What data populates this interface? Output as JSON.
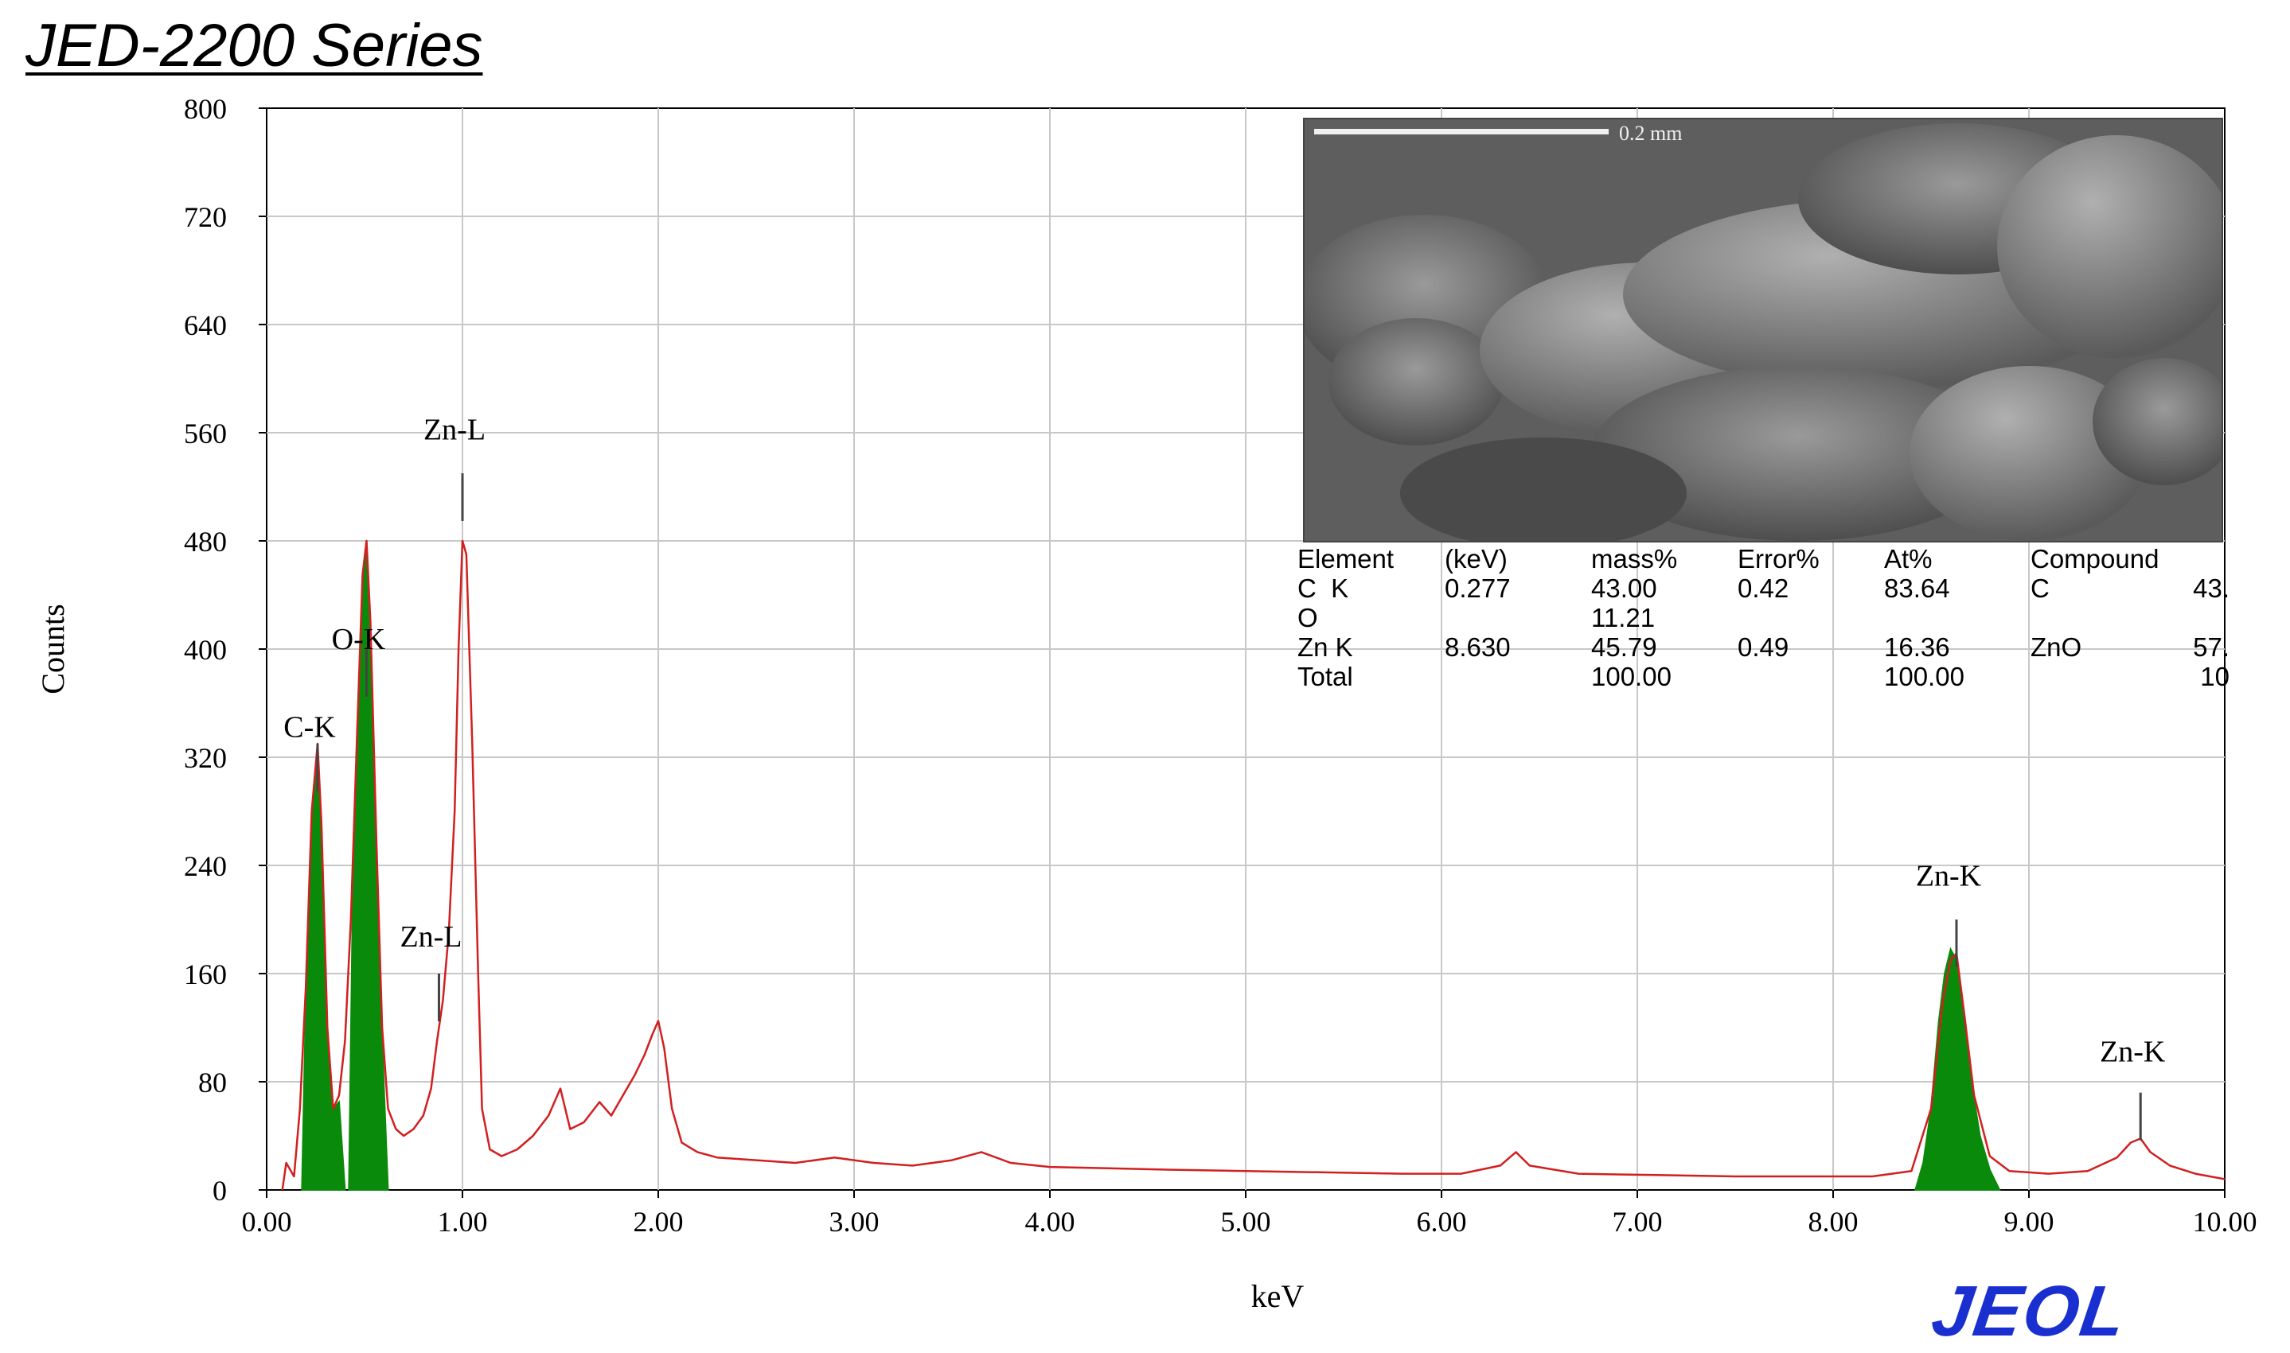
{
  "header": {
    "title": "JED-2200 Series"
  },
  "brand": {
    "logo_text": "JEOL",
    "logo_color": "#1a2fd0"
  },
  "colors": {
    "spectrum_line": "#d21f1f",
    "peak_fill": "#0a8a0a",
    "grid": "#c8c8c8",
    "axis": "#000000"
  },
  "chart_data": {
    "type": "line",
    "xlabel": "keV",
    "ylabel": "Counts",
    "xlim": [
      0,
      10
    ],
    "ylim": [
      0,
      800
    ],
    "x_ticks": [
      "0.00",
      "1.00",
      "2.00",
      "3.00",
      "4.00",
      "5.00",
      "6.00",
      "7.00",
      "8.00",
      "9.00",
      "10.00"
    ],
    "y_ticks": [
      "0",
      "80",
      "160",
      "240",
      "320",
      "400",
      "480",
      "560",
      "640",
      "720",
      "800"
    ],
    "grid": true,
    "series": [
      {
        "style": "line",
        "points": [
          [
            0.08,
            0
          ],
          [
            0.1,
            20
          ],
          [
            0.14,
            10
          ],
          [
            0.17,
            60
          ],
          [
            0.2,
            150
          ],
          [
            0.23,
            280
          ],
          [
            0.26,
            330
          ],
          [
            0.28,
            270
          ],
          [
            0.31,
            120
          ],
          [
            0.34,
            60
          ],
          [
            0.37,
            70
          ],
          [
            0.4,
            110
          ],
          [
            0.43,
            200
          ],
          [
            0.46,
            330
          ],
          [
            0.49,
            455
          ],
          [
            0.51,
            480
          ],
          [
            0.53,
            420
          ],
          [
            0.56,
            260
          ],
          [
            0.59,
            120
          ],
          [
            0.62,
            60
          ],
          [
            0.66,
            45
          ],
          [
            0.7,
            40
          ],
          [
            0.75,
            45
          ],
          [
            0.8,
            55
          ],
          [
            0.84,
            75
          ],
          [
            0.87,
            110
          ],
          [
            0.9,
            140
          ],
          [
            0.93,
            190
          ],
          [
            0.96,
            280
          ],
          [
            0.98,
            400
          ],
          [
            1.0,
            480
          ],
          [
            1.02,
            470
          ],
          [
            1.05,
            330
          ],
          [
            1.08,
            160
          ],
          [
            1.1,
            60
          ],
          [
            1.14,
            30
          ],
          [
            1.2,
            25
          ],
          [
            1.28,
            30
          ],
          [
            1.36,
            40
          ],
          [
            1.44,
            55
          ],
          [
            1.5,
            75
          ],
          [
            1.55,
            45
          ],
          [
            1.62,
            50
          ],
          [
            1.7,
            65
          ],
          [
            1.76,
            55
          ],
          [
            1.82,
            70
          ],
          [
            1.88,
            85
          ],
          [
            1.93,
            100
          ],
          [
            1.97,
            115
          ],
          [
            2.0,
            125
          ],
          [
            2.03,
            105
          ],
          [
            2.07,
            60
          ],
          [
            2.12,
            35
          ],
          [
            2.2,
            28
          ],
          [
            2.3,
            24
          ],
          [
            2.5,
            22
          ],
          [
            2.7,
            20
          ],
          [
            2.9,
            24
          ],
          [
            3.1,
            20
          ],
          [
            3.3,
            18
          ],
          [
            3.5,
            22
          ],
          [
            3.65,
            28
          ],
          [
            3.8,
            20
          ],
          [
            4.0,
            17
          ],
          [
            4.3,
            16
          ],
          [
            4.6,
            15
          ],
          [
            5.0,
            14
          ],
          [
            5.4,
            13
          ],
          [
            5.8,
            12
          ],
          [
            6.1,
            12
          ],
          [
            6.3,
            18
          ],
          [
            6.38,
            28
          ],
          [
            6.45,
            18
          ],
          [
            6.7,
            12
          ],
          [
            7.1,
            11
          ],
          [
            7.5,
            10
          ],
          [
            7.9,
            10
          ],
          [
            8.2,
            10
          ],
          [
            8.4,
            14
          ],
          [
            8.5,
            60
          ],
          [
            8.56,
            140
          ],
          [
            8.6,
            170
          ],
          [
            8.63,
            175
          ],
          [
            8.67,
            130
          ],
          [
            8.72,
            70
          ],
          [
            8.8,
            25
          ],
          [
            8.9,
            14
          ],
          [
            9.1,
            12
          ],
          [
            9.3,
            14
          ],
          [
            9.45,
            24
          ],
          [
            9.52,
            35
          ],
          [
            9.57,
            38
          ],
          [
            9.62,
            28
          ],
          [
            9.72,
            18
          ],
          [
            9.85,
            12
          ],
          [
            10.0,
            8
          ]
        ]
      },
      {
        "style": "fill",
        "points": [
          [
            0.18,
            0
          ],
          [
            0.2,
            140
          ],
          [
            0.23,
            270
          ],
          [
            0.26,
            325
          ],
          [
            0.28,
            265
          ],
          [
            0.31,
            110
          ],
          [
            0.34,
            60
          ],
          [
            0.37,
            65
          ],
          [
            0.4,
            0
          ]
        ]
      },
      {
        "style": "fill",
        "points": [
          [
            0.42,
            0
          ],
          [
            0.44,
            220
          ],
          [
            0.47,
            350
          ],
          [
            0.49,
            450
          ],
          [
            0.51,
            478
          ],
          [
            0.53,
            410
          ],
          [
            0.56,
            250
          ],
          [
            0.59,
            110
          ],
          [
            0.62,
            0
          ]
        ]
      },
      {
        "style": "fill",
        "points": [
          [
            8.42,
            0
          ],
          [
            8.46,
            20
          ],
          [
            8.5,
            60
          ],
          [
            8.54,
            125
          ],
          [
            8.57,
            160
          ],
          [
            8.6,
            178
          ],
          [
            8.63,
            170
          ],
          [
            8.66,
            135
          ],
          [
            8.7,
            85
          ],
          [
            8.75,
            40
          ],
          [
            8.8,
            15
          ],
          [
            8.85,
            0
          ]
        ]
      }
    ],
    "annotations": [
      {
        "text": "C-K",
        "x": 0.26,
        "marker_top": 330,
        "label_y": 335
      },
      {
        "text": "O-K",
        "x": 0.51,
        "marker_top": 400,
        "label_y": 400
      },
      {
        "text": "Zn-L",
        "x": 1.0,
        "marker_top": 530,
        "label_y": 555
      },
      {
        "text": "Zn-L",
        "x": 0.88,
        "marker_top": 160,
        "label_y": 180
      },
      {
        "text": "Zn-K",
        "x": 8.63,
        "marker_top": 200,
        "label_y": 225
      },
      {
        "text": "Zn-K",
        "x": 9.57,
        "marker_top": 72,
        "label_y": 95
      }
    ]
  },
  "inset_image": {
    "scale_bar_label": "0.2 mm"
  },
  "eds_table": {
    "headers": [
      "Element",
      "(keV)",
      "mass%",
      "Error%",
      "At%",
      "Compound"
    ],
    "extra_header": "",
    "rows": [
      [
        "C  K",
        "0.277",
        "43.00",
        "0.42",
        "83.64",
        "C",
        "43."
      ],
      [
        "O",
        "",
        "11.21",
        "",
        "",
        "",
        ""
      ],
      [
        "Zn K",
        "8.630",
        "45.79",
        "0.49",
        "16.36",
        "ZnO",
        "57."
      ],
      [
        "Total",
        "",
        "100.00",
        "",
        "100.00",
        "",
        "10"
      ]
    ]
  }
}
